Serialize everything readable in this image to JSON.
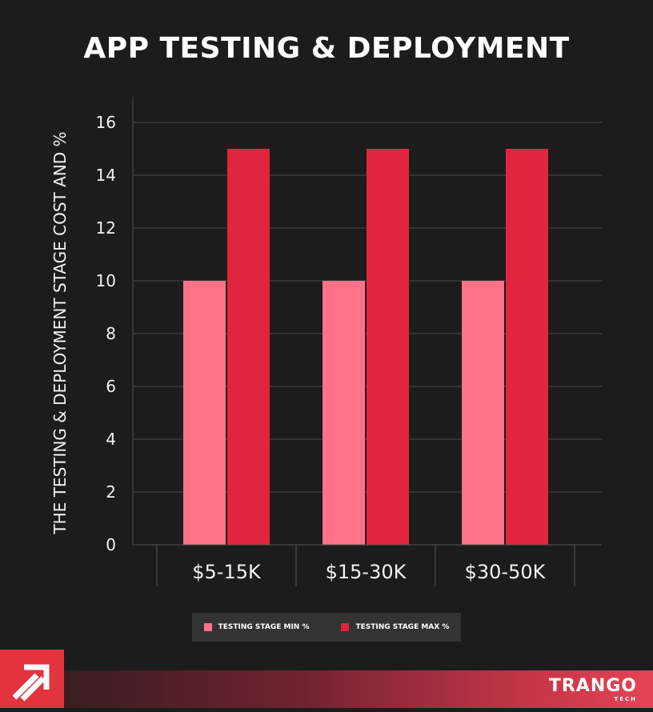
{
  "title": "APP TESTING & DEPLOYMENT",
  "chart_data": {
    "type": "bar",
    "title": "APP TESTING & DEPLOYMENT",
    "xlabel": "",
    "ylabel": "THE TESTING & DEPLOYMENT STAGE COST AND %",
    "categories": [
      "$5-15K",
      "$15-30K",
      "$30-50K"
    ],
    "series": [
      {
        "name": "TESTING STAGE MIN %",
        "values": [
          10,
          10,
          10
        ],
        "color": "#ff7288"
      },
      {
        "name": "TESTING STAGE MAX %",
        "values": [
          15,
          15,
          15
        ],
        "color": "#e0263f"
      }
    ],
    "ylim": [
      0,
      17
    ],
    "yticks": [
      0,
      2,
      4,
      6,
      8,
      10,
      12,
      14,
      16
    ],
    "grid": true,
    "legend": "bottom"
  },
  "brand": {
    "name": "TRANGO",
    "sub": "TECH",
    "logo": "arrow-logo-icon"
  },
  "colors": {
    "background": "#1c1c1c",
    "grid": "#4a4a4a",
    "accent": "#e2333f"
  }
}
